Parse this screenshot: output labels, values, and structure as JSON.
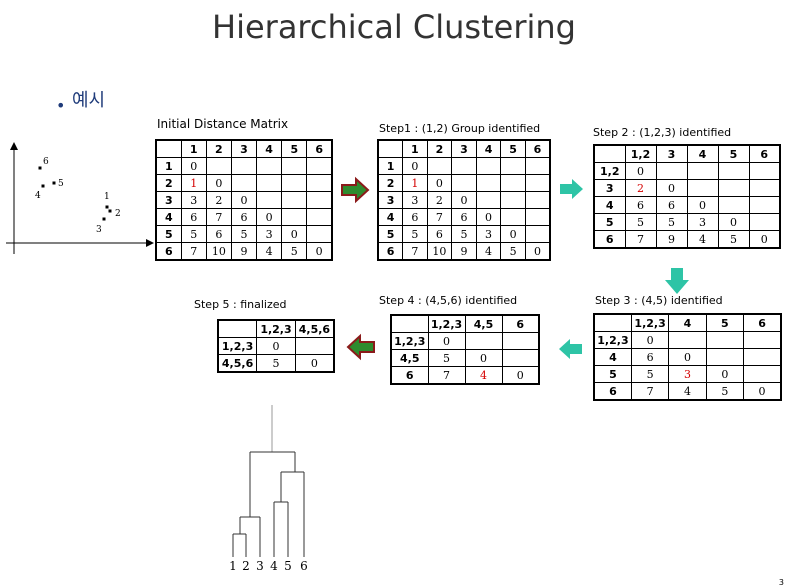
{
  "title": "Hierarchical Clustering",
  "bullet": "예시",
  "page_number": "3",
  "points": [
    {
      "label": "1",
      "x": 107,
      "y": 207
    },
    {
      "label": "2",
      "x": 110,
      "y": 211
    },
    {
      "label": "3",
      "x": 104,
      "y": 219
    },
    {
      "label": "4",
      "x": 43,
      "y": 186
    },
    {
      "label": "5",
      "x": 54,
      "y": 183
    },
    {
      "label": "6",
      "x": 40,
      "y": 168
    }
  ],
  "matrices": [
    {
      "title": "Initial Distance Matrix",
      "header": [
        "",
        "1",
        "2",
        "3",
        "4",
        "5",
        "6"
      ],
      "rows": [
        {
          "label": "1",
          "cells": [
            "0",
            "",
            "",
            "",
            "",
            ""
          ]
        },
        {
          "label": "2",
          "cells": [
            "1",
            "0",
            "",
            "",
            "",
            ""
          ]
        },
        {
          "label": "3",
          "cells": [
            "3",
            "2",
            "0",
            "",
            "",
            ""
          ]
        },
        {
          "label": "4",
          "cells": [
            "6",
            "7",
            "6",
            "0",
            "",
            ""
          ]
        },
        {
          "label": "5",
          "cells": [
            "5",
            "6",
            "5",
            "3",
            "0",
            ""
          ]
        },
        {
          "label": "6",
          "cells": [
            "7",
            "10",
            "9",
            "4",
            "5",
            "0"
          ]
        }
      ],
      "highlight": [
        [
          1,
          0
        ]
      ]
    },
    {
      "title": "Step1 : (1,2) Group identified",
      "header": [
        "",
        "1",
        "2",
        "3",
        "4",
        "5",
        "6"
      ],
      "rows": [
        {
          "label": "1",
          "cells": [
            "0",
            "",
            "",
            "",
            "",
            ""
          ]
        },
        {
          "label": "2",
          "cells": [
            "1",
            "0",
            "",
            "",
            "",
            ""
          ]
        },
        {
          "label": "3",
          "cells": [
            "3",
            "2",
            "0",
            "",
            "",
            ""
          ]
        },
        {
          "label": "4",
          "cells": [
            "6",
            "7",
            "6",
            "0",
            "",
            ""
          ]
        },
        {
          "label": "5",
          "cells": [
            "5",
            "6",
            "5",
            "3",
            "0",
            ""
          ]
        },
        {
          "label": "6",
          "cells": [
            "7",
            "10",
            "9",
            "4",
            "5",
            "0"
          ]
        }
      ],
      "highlight": [
        [
          1,
          0
        ]
      ]
    },
    {
      "title": "Step 2 : (1,2,3) identified",
      "header": [
        "",
        "1,2",
        "3",
        "4",
        "5",
        "6"
      ],
      "rows": [
        {
          "label": "1,2",
          "cells": [
            "0",
            "",
            "",
            "",
            ""
          ]
        },
        {
          "label": "3",
          "cells": [
            "2",
            "0",
            "",
            "",
            ""
          ]
        },
        {
          "label": "4",
          "cells": [
            "6",
            "6",
            "0",
            "",
            ""
          ]
        },
        {
          "label": "5",
          "cells": [
            "5",
            "5",
            "3",
            "0",
            ""
          ]
        },
        {
          "label": "6",
          "cells": [
            "7",
            "9",
            "4",
            "5",
            "0"
          ]
        }
      ],
      "highlight": [
        [
          1,
          0
        ]
      ]
    },
    {
      "title": "Step 3 : (4,5) identified",
      "header": [
        "",
        "1,2,3",
        "4",
        "5",
        "6"
      ],
      "rows": [
        {
          "label": "1,2,3",
          "cells": [
            "0",
            "",
            "",
            ""
          ]
        },
        {
          "label": "4",
          "cells": [
            "6",
            "0",
            "",
            ""
          ]
        },
        {
          "label": "5",
          "cells": [
            "5",
            "3",
            "0",
            ""
          ]
        },
        {
          "label": "6",
          "cells": [
            "7",
            "4",
            "5",
            "0"
          ]
        }
      ],
      "highlight": [
        [
          2,
          1
        ]
      ]
    },
    {
      "title": "Step 4 : (4,5,6) identified",
      "header": [
        "",
        "1,2,3",
        "4,5",
        "6"
      ],
      "rows": [
        {
          "label": "1,2,3",
          "cells": [
            "0",
            "",
            ""
          ]
        },
        {
          "label": "4,5",
          "cells": [
            "5",
            "0",
            ""
          ]
        },
        {
          "label": "6",
          "cells": [
            "7",
            "4",
            "0"
          ]
        }
      ],
      "highlight": [
        [
          2,
          1
        ]
      ]
    },
    {
      "title": "Step 5 : finalized",
      "header": [
        "",
        "1,2,3",
        "4,5,6"
      ],
      "rows": [
        {
          "label": "1,2,3",
          "cells": [
            "0",
            ""
          ]
        },
        {
          "label": "4,5,6",
          "cells": [
            "5",
            "0"
          ]
        }
      ],
      "highlight": []
    }
  ],
  "dendrogram": {
    "leaves": [
      "1",
      "2",
      "3",
      "4",
      "5",
      "6"
    ]
  },
  "colors": {
    "title": "#333333",
    "bullet": "#1f3b7a",
    "highlight": "#d40000",
    "red_arrow": "#8b1a1a",
    "green_arrow": "#2e8b2e",
    "teal_arrow": "#2ec4a6"
  }
}
